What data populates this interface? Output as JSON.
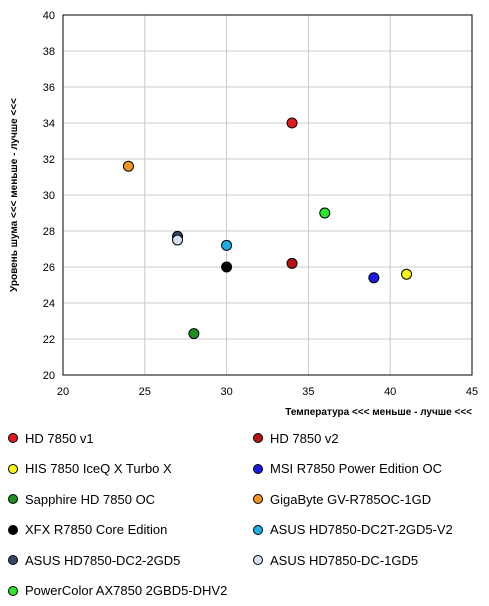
{
  "chart_data": {
    "type": "scatter",
    "xlabel": "Температура <<< меньше - лучше <<<",
    "ylabel": "Уровень шума <<< меньше - лучше <<<",
    "xlim": [
      20,
      45
    ],
    "ylim": [
      20,
      40
    ],
    "x_ticks": [
      "20",
      "25",
      "30",
      "35",
      "40",
      "45"
    ],
    "y_ticks": [
      "20",
      "22",
      "24",
      "26",
      "28",
      "30",
      "32",
      "34",
      "36",
      "38",
      "40"
    ],
    "grid": true,
    "legend_position": "bottom",
    "series": [
      {
        "name": "HD 7850 v1",
        "color": "#e11a1a",
        "x": 34,
        "y": 34.0
      },
      {
        "name": "HD 7850 v2",
        "color": "#b81212",
        "x": 34,
        "y": 26.2
      },
      {
        "name": "HIS 7850 IceQ X Turbo X",
        "color": "#f5f50f",
        "x": 41,
        "y": 25.6
      },
      {
        "name": "MSI R7850 Power Edition OC",
        "color": "#1a1ae6",
        "x": 39,
        "y": 25.4
      },
      {
        "name": "Sapphire HD 7850 OC",
        "color": "#1f8f1f",
        "x": 28,
        "y": 22.3
      },
      {
        "name": "GigaByte GV-R785OC-1GD",
        "color": "#f5941e",
        "x": 24,
        "y": 31.6
      },
      {
        "name": "XFX R7850 Core Edition",
        "color": "#000000",
        "x": 30,
        "y": 26.0
      },
      {
        "name": "ASUS HD7850-DC2T-2GD5-V2",
        "color": "#1ab0e6",
        "x": 30,
        "y": 27.2
      },
      {
        "name": "ASUS HD7850-DC2-2GD5",
        "color": "#2f4a66",
        "x": 27,
        "y": 27.7
      },
      {
        "name": "ASUS HD7850-DC-1GD5",
        "color": "#d4e0f0",
        "x": 27,
        "y": 27.5
      },
      {
        "name": "PowerColor AX7850 2GBD5-DHV2",
        "color": "#2ee62e",
        "x": 36,
        "y": 29.0
      }
    ]
  }
}
